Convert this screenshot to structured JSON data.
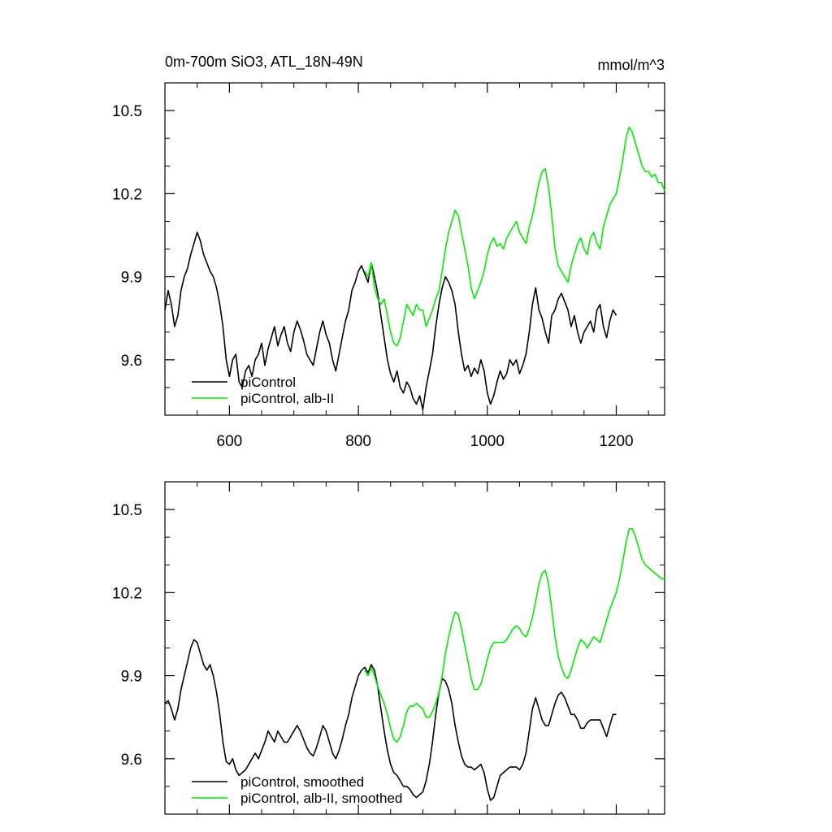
{
  "colors": {
    "picontrol": "#000000",
    "alb_ii": "#00ee00",
    "axis": "#000000",
    "background": "#ffffff"
  },
  "chart_data": [
    {
      "type": "line",
      "title": "0m-700m SiO3, ATL_18N-49N",
      "units": "mmol/m^3",
      "xlim": [
        500,
        1275
      ],
      "ylim": [
        9.4,
        10.6
      ],
      "x_ticks": [
        600,
        800,
        1000,
        1200
      ],
      "x_tick_labels": [
        "600",
        "800",
        "1000",
        "1200"
      ],
      "y_ticks": [
        9.6,
        9.9,
        10.2,
        10.5
      ],
      "y_tick_labels": [
        "9.6",
        "9.9",
        "10.2",
        "10.5"
      ],
      "grid": false,
      "legend_position": "bottom-left",
      "series": [
        {
          "name": "piControl",
          "color_key": "picontrol",
          "x": [
            500,
            505,
            510,
            515,
            520,
            525,
            530,
            535,
            540,
            545,
            550,
            555,
            560,
            565,
            570,
            575,
            580,
            585,
            590,
            595,
            600,
            605,
            610,
            615,
            620,
            625,
            630,
            635,
            640,
            645,
            650,
            655,
            660,
            665,
            670,
            675,
            680,
            685,
            690,
            695,
            700,
            705,
            710,
            715,
            720,
            725,
            730,
            735,
            740,
            745,
            750,
            755,
            760,
            765,
            770,
            775,
            780,
            785,
            790,
            795,
            800,
            805,
            810,
            815,
            820,
            825,
            830,
            835,
            840,
            845,
            850,
            855,
            860,
            865,
            870,
            875,
            880,
            885,
            890,
            895,
            900,
            905,
            910,
            915,
            920,
            925,
            930,
            935,
            940,
            945,
            950,
            955,
            960,
            965,
            970,
            975,
            980,
            985,
            990,
            995,
            1000,
            1005,
            1010,
            1015,
            1020,
            1025,
            1030,
            1035,
            1040,
            1045,
            1050,
            1055,
            1060,
            1065,
            1070,
            1075,
            1080,
            1085,
            1090,
            1095,
            1100,
            1105,
            1110,
            1115,
            1120,
            1125,
            1130,
            1135,
            1140,
            1145,
            1150,
            1155,
            1160,
            1165,
            1170,
            1175,
            1180,
            1185,
            1190,
            1195,
            1200
          ],
          "y": [
            9.78,
            9.85,
            9.8,
            9.72,
            9.76,
            9.85,
            9.9,
            9.93,
            9.98,
            10.02,
            10.06,
            10.03,
            9.98,
            9.95,
            9.92,
            9.9,
            9.86,
            9.8,
            9.72,
            9.6,
            9.54,
            9.6,
            9.62,
            9.52,
            9.5,
            9.56,
            9.58,
            9.54,
            9.6,
            9.62,
            9.66,
            9.58,
            9.64,
            9.68,
            9.72,
            9.65,
            9.69,
            9.72,
            9.66,
            9.63,
            9.7,
            9.74,
            9.71,
            9.67,
            9.62,
            9.6,
            9.58,
            9.64,
            9.7,
            9.74,
            9.69,
            9.66,
            9.6,
            9.56,
            9.62,
            9.68,
            9.74,
            9.78,
            9.85,
            9.88,
            9.92,
            9.94,
            9.91,
            9.88,
            9.95,
            9.9,
            9.84,
            9.76,
            9.68,
            9.6,
            9.55,
            9.52,
            9.56,
            9.5,
            9.48,
            9.52,
            9.5,
            9.46,
            9.44,
            9.47,
            9.42,
            9.5,
            9.56,
            9.62,
            9.72,
            9.8,
            9.86,
            9.9,
            9.88,
            9.85,
            9.8,
            9.7,
            9.62,
            9.56,
            9.58,
            9.54,
            9.57,
            9.55,
            9.6,
            9.56,
            9.48,
            9.44,
            9.47,
            9.52,
            9.56,
            9.53,
            9.55,
            9.6,
            9.58,
            9.6,
            9.55,
            9.58,
            9.62,
            9.7,
            9.8,
            9.86,
            9.78,
            9.75,
            9.7,
            9.66,
            9.76,
            9.78,
            9.82,
            9.84,
            9.81,
            9.78,
            9.72,
            9.76,
            9.7,
            9.66,
            9.7,
            9.72,
            9.74,
            9.7,
            9.78,
            9.8,
            9.72,
            9.68,
            9.74,
            9.78,
            9.76
          ]
        },
        {
          "name": "piControl, alb-II",
          "color_key": "alb_ii",
          "x": [
            810,
            815,
            820,
            825,
            830,
            835,
            840,
            845,
            850,
            855,
            860,
            865,
            870,
            875,
            880,
            885,
            890,
            895,
            900,
            905,
            910,
            915,
            920,
            925,
            930,
            935,
            940,
            945,
            950,
            955,
            960,
            965,
            970,
            975,
            980,
            985,
            990,
            995,
            1000,
            1005,
            1010,
            1015,
            1020,
            1025,
            1030,
            1035,
            1040,
            1045,
            1050,
            1055,
            1060,
            1065,
            1070,
            1075,
            1080,
            1085,
            1090,
            1095,
            1100,
            1105,
            1110,
            1115,
            1120,
            1125,
            1130,
            1135,
            1140,
            1145,
            1150,
            1155,
            1160,
            1165,
            1170,
            1175,
            1180,
            1185,
            1190,
            1195,
            1200,
            1205,
            1210,
            1215,
            1220,
            1225,
            1230,
            1235,
            1240,
            1245,
            1250,
            1255,
            1260,
            1265,
            1270,
            1275
          ],
          "y": [
            9.92,
            9.9,
            9.95,
            9.86,
            9.82,
            9.8,
            9.82,
            9.76,
            9.7,
            9.66,
            9.65,
            9.68,
            9.74,
            9.8,
            9.78,
            9.76,
            9.8,
            9.78,
            9.78,
            9.72,
            9.75,
            9.78,
            9.82,
            9.85,
            9.92,
            10.0,
            10.06,
            10.1,
            10.14,
            10.12,
            10.06,
            10.0,
            9.94,
            9.86,
            9.82,
            9.85,
            9.88,
            9.92,
            9.98,
            10.02,
            10.04,
            10.01,
            10.02,
            10.0,
            10.04,
            10.06,
            10.08,
            10.1,
            10.06,
            10.04,
            10.02,
            10.08,
            10.12,
            10.18,
            10.24,
            10.28,
            10.29,
            10.22,
            10.12,
            10.0,
            9.94,
            9.92,
            9.9,
            9.88,
            9.94,
            9.98,
            10.02,
            10.04,
            10.0,
            9.98,
            10.04,
            10.06,
            10.02,
            10.0,
            10.08,
            10.12,
            10.16,
            10.18,
            10.2,
            10.26,
            10.32,
            10.4,
            10.44,
            10.42,
            10.38,
            10.34,
            10.3,
            10.28,
            10.28,
            10.26,
            10.27,
            10.24,
            10.24,
            10.21
          ]
        }
      ]
    },
    {
      "type": "line",
      "xlim": [
        500,
        1275
      ],
      "ylim": [
        9.4,
        10.6
      ],
      "x_ticks": [
        600,
        800,
        1000,
        1200
      ],
      "y_ticks": [
        9.6,
        9.9,
        10.2,
        10.5
      ],
      "y_tick_labels": [
        "9.6",
        "9.9",
        "10.2",
        "10.5"
      ],
      "grid": false,
      "legend_position": "bottom-left",
      "series": [
        {
          "name": "piControl, smoothed",
          "color_key": "picontrol",
          "x": [
            500,
            505,
            510,
            515,
            520,
            525,
            530,
            535,
            540,
            545,
            550,
            555,
            560,
            565,
            570,
            575,
            580,
            585,
            590,
            595,
            600,
            605,
            610,
            615,
            620,
            625,
            630,
            635,
            640,
            645,
            650,
            655,
            660,
            665,
            670,
            675,
            680,
            685,
            690,
            695,
            700,
            705,
            710,
            715,
            720,
            725,
            730,
            735,
            740,
            745,
            750,
            755,
            760,
            765,
            770,
            775,
            780,
            785,
            790,
            795,
            800,
            805,
            810,
            815,
            820,
            825,
            830,
            835,
            840,
            845,
            850,
            855,
            860,
            865,
            870,
            875,
            880,
            885,
            890,
            895,
            900,
            905,
            910,
            915,
            920,
            925,
            930,
            935,
            940,
            945,
            950,
            955,
            960,
            965,
            970,
            975,
            980,
            985,
            990,
            995,
            1000,
            1005,
            1010,
            1015,
            1020,
            1025,
            1030,
            1035,
            1040,
            1045,
            1050,
            1055,
            1060,
            1065,
            1070,
            1075,
            1080,
            1085,
            1090,
            1095,
            1100,
            1105,
            1110,
            1115,
            1120,
            1125,
            1130,
            1135,
            1140,
            1145,
            1150,
            1155,
            1160,
            1165,
            1170,
            1175,
            1180,
            1185,
            1190,
            1195,
            1200
          ],
          "y": [
            9.8,
            9.81,
            9.78,
            9.74,
            9.78,
            9.85,
            9.9,
            9.95,
            10.0,
            10.03,
            10.02,
            9.98,
            9.94,
            9.92,
            9.94,
            9.9,
            9.84,
            9.76,
            9.66,
            9.59,
            9.58,
            9.6,
            9.56,
            9.54,
            9.55,
            9.56,
            9.58,
            9.6,
            9.62,
            9.6,
            9.63,
            9.66,
            9.7,
            9.68,
            9.66,
            9.7,
            9.68,
            9.66,
            9.66,
            9.68,
            9.7,
            9.72,
            9.7,
            9.67,
            9.64,
            9.62,
            9.61,
            9.64,
            9.68,
            9.72,
            9.7,
            9.66,
            9.62,
            9.6,
            9.63,
            9.67,
            9.72,
            9.76,
            9.82,
            9.86,
            9.9,
            9.92,
            9.93,
            9.91,
            9.94,
            9.92,
            9.86,
            9.78,
            9.7,
            9.63,
            9.58,
            9.55,
            9.54,
            9.52,
            9.5,
            9.5,
            9.49,
            9.47,
            9.46,
            9.47,
            9.48,
            9.52,
            9.58,
            9.66,
            9.76,
            9.84,
            9.89,
            9.88,
            9.85,
            9.8,
            9.72,
            9.66,
            9.61,
            9.58,
            9.57,
            9.57,
            9.56,
            9.57,
            9.58,
            9.55,
            9.49,
            9.45,
            9.46,
            9.5,
            9.54,
            9.55,
            9.56,
            9.57,
            9.57,
            9.57,
            9.56,
            9.58,
            9.62,
            9.7,
            9.78,
            9.82,
            9.78,
            9.74,
            9.72,
            9.72,
            9.76,
            9.8,
            9.83,
            9.84,
            9.82,
            9.79,
            9.76,
            9.76,
            9.74,
            9.71,
            9.71,
            9.73,
            9.74,
            9.74,
            9.74,
            9.74,
            9.71,
            9.68,
            9.72,
            9.76,
            9.76
          ]
        },
        {
          "name": "piControl, alb-II, smoothed",
          "color_key": "alb_ii",
          "x": [
            810,
            815,
            820,
            825,
            830,
            835,
            840,
            845,
            850,
            855,
            860,
            865,
            870,
            875,
            880,
            885,
            890,
            895,
            900,
            905,
            910,
            915,
            920,
            925,
            930,
            935,
            940,
            945,
            950,
            955,
            960,
            965,
            970,
            975,
            980,
            985,
            990,
            995,
            1000,
            1005,
            1010,
            1015,
            1020,
            1025,
            1030,
            1035,
            1040,
            1045,
            1050,
            1055,
            1060,
            1065,
            1070,
            1075,
            1080,
            1085,
            1090,
            1095,
            1100,
            1105,
            1110,
            1115,
            1120,
            1125,
            1130,
            1135,
            1140,
            1145,
            1150,
            1155,
            1160,
            1165,
            1170,
            1175,
            1180,
            1185,
            1190,
            1195,
            1200,
            1205,
            1210,
            1215,
            1220,
            1225,
            1230,
            1235,
            1240,
            1245,
            1250,
            1255,
            1260,
            1265,
            1270,
            1275
          ],
          "y": [
            9.92,
            9.9,
            9.93,
            9.9,
            9.86,
            9.83,
            9.8,
            9.76,
            9.71,
            9.67,
            9.66,
            9.68,
            9.72,
            9.77,
            9.79,
            9.79,
            9.8,
            9.79,
            9.78,
            9.75,
            9.75,
            9.77,
            9.8,
            9.84,
            9.9,
            9.98,
            10.04,
            10.09,
            10.13,
            10.12,
            10.07,
            10.01,
            9.95,
            9.89,
            9.85,
            9.85,
            9.87,
            9.91,
            9.96,
            10.0,
            10.02,
            10.02,
            10.02,
            10.02,
            10.03,
            10.05,
            10.07,
            10.08,
            10.07,
            10.05,
            10.04,
            10.07,
            10.11,
            10.17,
            10.23,
            10.27,
            10.28,
            10.23,
            10.14,
            10.04,
            9.97,
            9.93,
            9.9,
            9.89,
            9.92,
            9.96,
            10.0,
            10.03,
            10.02,
            10.0,
            10.02,
            10.04,
            10.03,
            10.02,
            10.06,
            10.1,
            10.14,
            10.17,
            10.2,
            10.25,
            10.31,
            10.38,
            10.43,
            10.43,
            10.4,
            10.36,
            10.32,
            10.3,
            10.29,
            10.28,
            10.27,
            10.26,
            10.25,
            10.25
          ]
        }
      ]
    }
  ]
}
